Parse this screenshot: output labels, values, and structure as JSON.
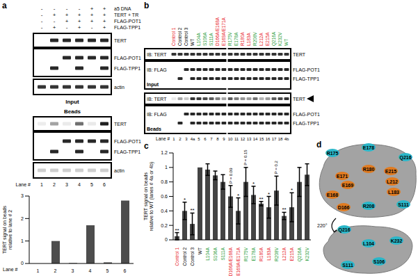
{
  "chart_data": [
    {
      "type": "bar",
      "categories": [
        "1",
        "2",
        "3",
        "4",
        "5",
        "6"
      ],
      "values": [
        0,
        1,
        0.02,
        1.7,
        0.05,
        2.8
      ],
      "color": "#4d4d4d",
      "ylim": [
        0,
        3
      ],
      "yticks": [
        0,
        1,
        2,
        3
      ],
      "y_label": [
        "TERT signal on beads",
        "relative to lane # 2"
      ],
      "x_label": "Lane #"
    },
    {
      "type": "bar",
      "categories": [
        "Control 1",
        "Control 2",
        "Control 3",
        "WT",
        "L104A",
        "S106A",
        "S111A",
        "D166A/E168A",
        "E169A/E171A",
        "R175V",
        "E178A",
        "R180A",
        "L183A",
        "R208V",
        "L212A",
        "E215A",
        "Q216A",
        "K232V"
      ],
      "values": [
        0.05,
        0.4,
        0.22,
        1,
        0.97,
        0.89,
        0.8,
        0.6,
        0.4,
        0.8,
        0.62,
        0.5,
        0.45,
        0.68,
        0.33,
        0.45,
        0.8,
        0.9
      ],
      "errors": [
        0.05,
        0.12,
        0.15,
        0,
        0.08,
        0.06,
        0.1,
        0.15,
        0.18,
        0.2,
        0.12,
        0.03,
        0.15,
        0.2,
        0.05,
        0.2,
        0.2,
        0.15
      ],
      "color": "#444444",
      "ylim": [
        0,
        1.2
      ],
      "yticks": [
        0,
        0.2,
        0.4,
        0.6,
        0.8,
        1,
        1.2
      ],
      "y_label": [
        "TERT signal on beads",
        "relative to WT (lanes # 4a or 4b)"
      ],
      "annotations": [
        {
          "category": "Control 1",
          "text": "**"
        },
        {
          "category": "Control 2",
          "text": "*"
        },
        {
          "category": "Control 3",
          "text": "**"
        },
        {
          "category": "D166A/E168A",
          "text": "P = 0.09"
        },
        {
          "category": "E169A/E171A",
          "text": "*"
        },
        {
          "category": "R175V",
          "text": "P = 0.15"
        },
        {
          "category": "E178A",
          "text": "*"
        },
        {
          "category": "R180A",
          "text": "**"
        },
        {
          "category": "L183A",
          "text": "*"
        },
        {
          "category": "R208V",
          "text": "P = 0.2"
        },
        {
          "category": "L212A",
          "text": "**"
        },
        {
          "category": "E215A",
          "text": "*"
        }
      ]
    }
  ],
  "figure": {
    "a": {
      "label": "a",
      "conditions": [
        {
          "name": "a5 DNA",
          "marks": [
            "-",
            "-",
            "-",
            "-",
            "+",
            "+"
          ]
        },
        {
          "name": "TERT + TR",
          "marks": [
            "-",
            "+",
            "+",
            "+",
            "+",
            "+"
          ]
        },
        {
          "name": "FLAG-POT1",
          "marks": [
            "-",
            "-",
            "+",
            "+",
            "+",
            "+"
          ]
        },
        {
          "name": "FLAG-TPP1",
          "marks": [
            "-",
            "+",
            "-",
            "+",
            "-",
            "+"
          ]
        }
      ],
      "input_label": "Input",
      "beads_label": "Beads",
      "bands": [
        "TERT",
        "FLAG-POT1",
        "FLAG-TPP1",
        "actin"
      ],
      "lane_header": "Lane #"
    },
    "b": {
      "label": "b",
      "lanes": [
        {
          "name": "Control 1",
          "lane": "1",
          "color": "#e8262b"
        },
        {
          "name": "Control 2",
          "lane": "2",
          "color": "#000000"
        },
        {
          "name": "Control 3",
          "lane": "3",
          "color": "#000000"
        },
        {
          "name": "WT",
          "lane": "4a",
          "color": "#000000"
        },
        {
          "name": "L104A",
          "lane": "5",
          "color": "#2a9d3a"
        },
        {
          "name": "S106A",
          "lane": "6",
          "color": "#2a9d3a"
        },
        {
          "name": "S111A",
          "lane": "7",
          "color": "#2a9d3a"
        },
        {
          "name": "D166A/E168A",
          "lane": "8",
          "color": "#e8262b"
        },
        {
          "name": "E169A/E171A",
          "lane": "9",
          "color": "#e8262b"
        },
        {
          "name": "R175V",
          "lane": "10",
          "color": "#2a9d3a"
        },
        {
          "name": "E178A",
          "lane": "11",
          "color": "#2a9d3a"
        },
        {
          "name": "R180A",
          "lane": "12",
          "color": "#e8262b"
        },
        {
          "name": "L183A",
          "lane": "13",
          "color": "#e8262b"
        },
        {
          "name": "R208V",
          "lane": "14",
          "color": "#2a9d3a"
        },
        {
          "name": "L212A",
          "lane": "15",
          "color": "#e8262b"
        },
        {
          "name": "E215A",
          "lane": "16",
          "color": "#e8262b"
        },
        {
          "name": "Q216A",
          "lane": "17",
          "color": "#2a9d3a"
        },
        {
          "name": "K232V",
          "lane": "18",
          "color": "#2a9d3a"
        },
        {
          "name": "WT",
          "lane": "4b",
          "color": "#2a9d3a"
        }
      ],
      "rows": [
        "IB: TERT",
        "IB: FLAG"
      ],
      "bands": [
        "TERT",
        "FLAG-POT1",
        "FLAG-TPP1"
      ],
      "input_label": "Input",
      "beads_label": "Beads",
      "lane_header": "Lane #"
    },
    "c": {
      "label": "c"
    },
    "d": {
      "label": "d",
      "rotation": "220°",
      "top_view": [
        {
          "name": "R175",
          "color": "#2ab7c9"
        },
        {
          "name": "E178",
          "color": "#2ab7c9"
        },
        {
          "name": "Q216",
          "color": "#2ab7c9"
        },
        {
          "name": "E171",
          "color": "#e07b20"
        },
        {
          "name": "R180",
          "color": "#e07b20"
        },
        {
          "name": "E215",
          "color": "#e07b20"
        },
        {
          "name": "E169",
          "color": "#e07b20"
        },
        {
          "name": "L212",
          "color": "#e07b20"
        },
        {
          "name": "E168",
          "color": "#e07b20"
        },
        {
          "name": "L183",
          "color": "#e07b20"
        },
        {
          "name": "D166",
          "color": "#e07b20"
        },
        {
          "name": "R208",
          "color": "#2ab7c9"
        },
        {
          "name": "S111",
          "color": "#2ab7c9"
        }
      ],
      "bottom_view": [
        {
          "name": "Q216",
          "color": "#2ab7c9"
        },
        {
          "name": "K232",
          "color": "#2ab7c9"
        },
        {
          "name": "L104",
          "color": "#2ab7c9"
        },
        {
          "name": "S106",
          "color": "#2ab7c9"
        },
        {
          "name": "S111",
          "color": "#2ab7c9"
        }
      ]
    }
  }
}
